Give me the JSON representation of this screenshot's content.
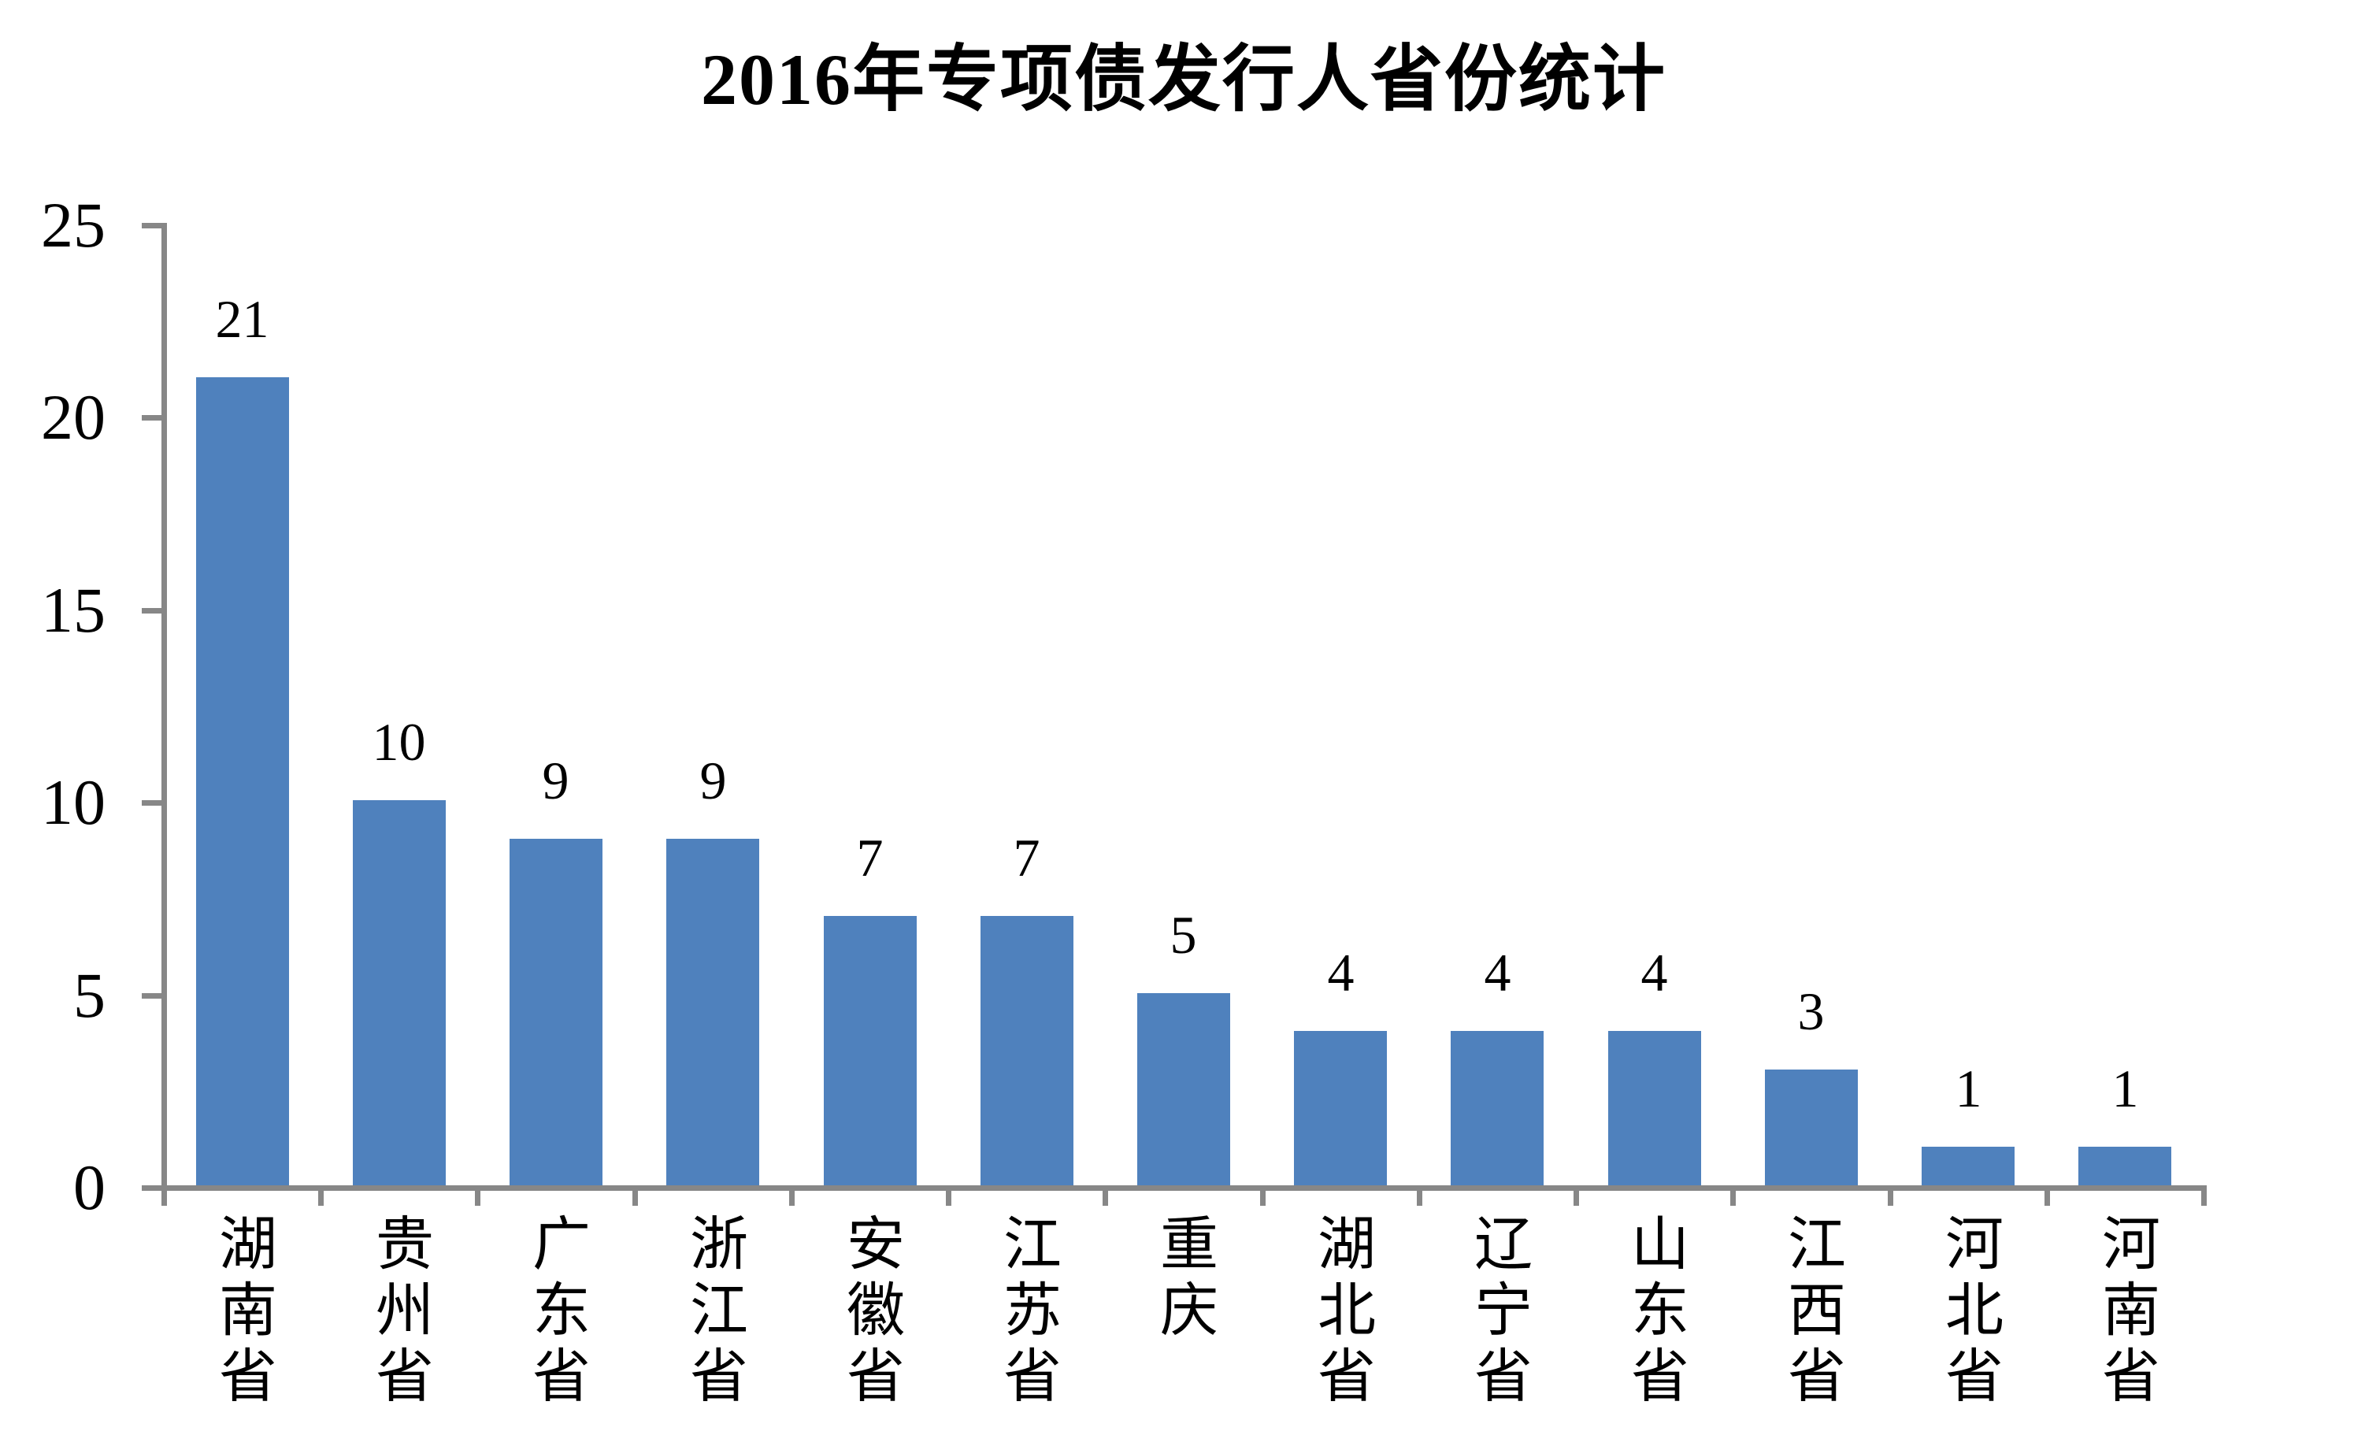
{
  "chart_data": {
    "type": "bar",
    "title": "2016年专项债发行人省份统计",
    "categories": [
      "湖南省",
      "贵州省",
      "广东省",
      "浙江省",
      "安徽省",
      "江苏省",
      "重庆",
      "湖北省",
      "辽宁省",
      "山东省",
      "江西省",
      "河北省",
      "河南省"
    ],
    "values": [
      21,
      10,
      9,
      9,
      7,
      7,
      5,
      4,
      4,
      4,
      3,
      1,
      1
    ],
    "data_labels": [
      "21",
      "10",
      "9",
      "9",
      "7",
      "7",
      "5",
      "4",
      "4",
      "4",
      "3",
      "1",
      "1"
    ],
    "xlabel": "",
    "ylabel": "",
    "y_ticks": [
      "0",
      "5",
      "10",
      "15",
      "20",
      "25"
    ],
    "ylim": [
      0,
      25
    ],
    "grid": "off",
    "legend": "none",
    "data_label_position": "outside-end",
    "x_label_orientation": "vertical-stacked",
    "colors": {
      "bar": "#4F81BD",
      "axis": "#878787",
      "text": "#000000",
      "background": "#FFFFFF"
    }
  }
}
